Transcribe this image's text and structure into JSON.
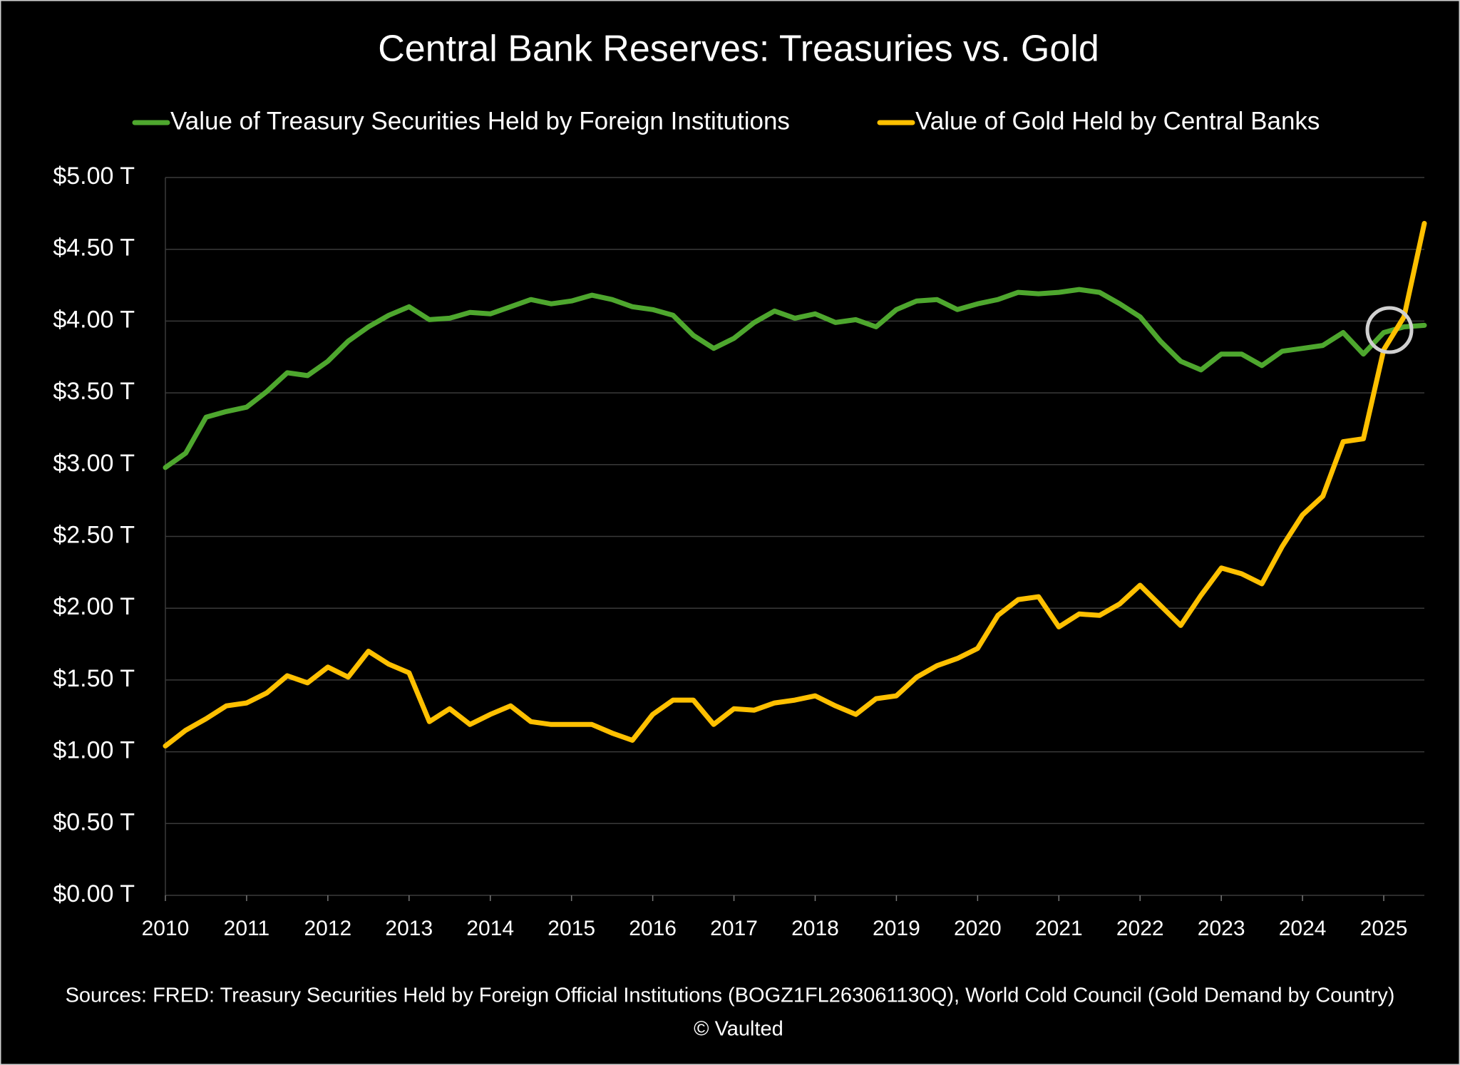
{
  "chart_data": {
    "type": "line",
    "title": "Central Bank Reserves: Treasuries vs. Gold",
    "x": [
      2010,
      2010.25,
      2010.5,
      2010.75,
      2011,
      2011.25,
      2011.5,
      2011.75,
      2012,
      2012.25,
      2012.5,
      2012.75,
      2013,
      2013.25,
      2013.5,
      2013.75,
      2014,
      2014.25,
      2014.5,
      2014.75,
      2015,
      2015.25,
      2015.5,
      2015.75,
      2016,
      2016.25,
      2016.5,
      2016.75,
      2017,
      2017.25,
      2017.5,
      2017.75,
      2018,
      2018.25,
      2018.5,
      2018.75,
      2019,
      2019.25,
      2019.5,
      2019.75,
      2020,
      2020.25,
      2020.5,
      2020.75,
      2021,
      2021.25,
      2021.5,
      2021.75,
      2022,
      2022.25,
      2022.5,
      2022.75,
      2023,
      2023.25,
      2023.5,
      2023.75,
      2024,
      2024.25,
      2024.5,
      2024.75,
      2025,
      2025.25,
      2025.5
    ],
    "series": [
      {
        "name": "Value of Treasury Securities Held by Foreign Institutions",
        "color": "#4ea72e",
        "values": [
          2.98,
          3.08,
          3.33,
          3.37,
          3.4,
          3.51,
          3.64,
          3.62,
          3.72,
          3.86,
          3.96,
          4.04,
          4.1,
          4.01,
          4.02,
          4.06,
          4.05,
          4.1,
          4.15,
          4.12,
          4.14,
          4.18,
          4.15,
          4.1,
          4.08,
          4.04,
          3.9,
          3.81,
          3.88,
          3.99,
          4.07,
          4.02,
          4.05,
          3.99,
          4.01,
          3.96,
          4.08,
          4.14,
          4.15,
          4.08,
          4.12,
          4.15,
          4.2,
          4.19,
          4.2,
          4.22,
          4.2,
          4.12,
          4.03,
          3.86,
          3.72,
          3.66,
          3.77,
          3.77,
          3.69,
          3.79,
          3.81,
          3.83,
          3.92,
          3.77,
          3.92,
          3.96,
          3.97
        ]
      },
      {
        "name": "Value of Gold Held by Central Banks",
        "color": "#ffc000",
        "values": [
          1.04,
          1.15,
          1.23,
          1.32,
          1.34,
          1.41,
          1.53,
          1.48,
          1.59,
          1.52,
          1.7,
          1.61,
          1.55,
          1.21,
          1.3,
          1.19,
          1.26,
          1.32,
          1.21,
          1.19,
          1.19,
          1.19,
          1.13,
          1.08,
          1.26,
          1.36,
          1.36,
          1.19,
          1.3,
          1.29,
          1.34,
          1.36,
          1.39,
          1.32,
          1.26,
          1.37,
          1.39,
          1.52,
          1.6,
          1.65,
          1.72,
          1.95,
          2.06,
          2.08,
          1.87,
          1.96,
          1.95,
          2.03,
          2.16,
          2.02,
          1.88,
          2.09,
          2.28,
          2.24,
          2.17,
          2.43,
          2.65,
          2.78,
          3.16,
          3.18,
          3.8,
          4.03,
          4.68
        ]
      }
    ],
    "xlim": [
      2010,
      2025.5
    ],
    "xticks": [
      2010,
      2011,
      2012,
      2013,
      2014,
      2015,
      2016,
      2017,
      2018,
      2019,
      2020,
      2021,
      2022,
      2023,
      2024,
      2025
    ],
    "ylim": [
      0,
      5
    ],
    "yticks": [
      {
        "value": 0,
        "label": "$0.00 T"
      },
      {
        "value": 0.5,
        "label": "$0.50 T"
      },
      {
        "value": 1,
        "label": "$1.00 T"
      },
      {
        "value": 1.5,
        "label": "$1.50 T"
      },
      {
        "value": 2,
        "label": "$2.00 T"
      },
      {
        "value": 2.5,
        "label": "$2.50 T"
      },
      {
        "value": 3,
        "label": "$3.00 T"
      },
      {
        "value": 3.5,
        "label": "$3.50 T"
      },
      {
        "value": 4,
        "label": "$4.00 T"
      },
      {
        "value": 4.5,
        "label": "$4.50 T"
      },
      {
        "value": 5,
        "label": "$5.00 T"
      }
    ],
    "grid": true,
    "legend": "top",
    "sources": "Sources: FRED: Treasury Securities Held by Foreign Official Institutions (BOGZ1FL263061130Q), World Cold Council (Gold Demand by Country)",
    "credit": "© Vaulted"
  }
}
